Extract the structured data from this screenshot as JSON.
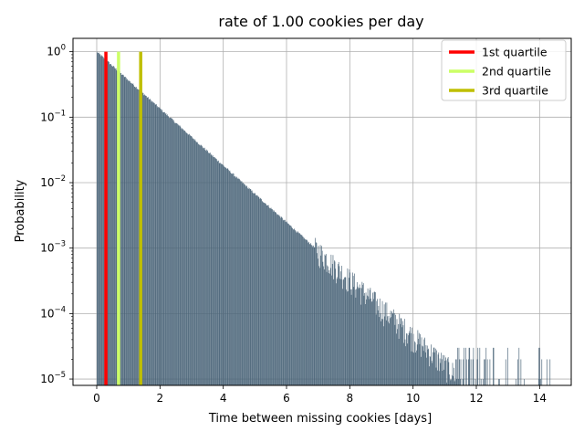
{
  "chart_data": {
    "type": "bar",
    "title": "rate of 1.00 cookies per day",
    "xlabel": "Time between missing cookies [days]",
    "ylabel": "Probability",
    "xlim": [
      -0.75,
      15
    ],
    "ylim": [
      8e-06,
      1.6
    ],
    "yscale": "log",
    "grid": true,
    "legend_position": "top-right",
    "x_ticks": [
      {
        "value": 0,
        "label": "0"
      },
      {
        "value": 2,
        "label": "2"
      },
      {
        "value": 4,
        "label": "4"
      },
      {
        "value": 6,
        "label": "6"
      },
      {
        "value": 8,
        "label": "8"
      },
      {
        "value": 10,
        "label": "10"
      },
      {
        "value": 12,
        "label": "12"
      },
      {
        "value": 14,
        "label": "14"
      }
    ],
    "y_ticks": [
      {
        "value": 1,
        "base": "10",
        "exp": "0"
      },
      {
        "value": 0.1,
        "base": "10",
        "exp": "−1"
      },
      {
        "value": 0.01,
        "base": "10",
        "exp": "−2"
      },
      {
        "value": 0.001,
        "base": "10",
        "exp": "−3"
      },
      {
        "value": 0.0001,
        "base": "10",
        "exp": "−4"
      },
      {
        "value": 1e-05,
        "base": "10",
        "exp": "−5"
      }
    ],
    "histogram": {
      "distribution": "exponential",
      "rate": 1.0,
      "bin_width": 0.02,
      "x_start": 0,
      "x_max": 14.4,
      "bar_color": "#4a6478"
    },
    "series": [
      {
        "name": "1st quartile",
        "x": 0.29,
        "color": "#ff0000"
      },
      {
        "name": "2nd quartile",
        "x": 0.69,
        "color": "#ccff66"
      },
      {
        "name": "3rd quartile",
        "x": 1.39,
        "color": "#bfbf00"
      }
    ]
  }
}
